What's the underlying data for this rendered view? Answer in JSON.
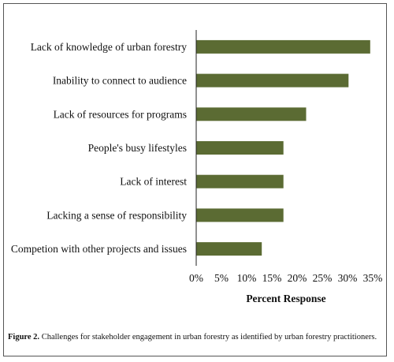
{
  "chart_data": {
    "type": "bar",
    "orientation": "horizontal",
    "categories": [
      "Lack of knowledge of urban forestry",
      "Inability to connect to audience",
      "Lack of resources for programs",
      "People's busy lifestyles",
      "Lack of interest",
      "Lacking a sense of responsibility",
      "Competion with other projects and issues"
    ],
    "values": [
      34.5,
      30.2,
      21.8,
      17.3,
      17.3,
      17.3,
      13.0
    ],
    "xlabel": "Percent Response",
    "xlim": [
      0,
      35
    ],
    "xticks": [
      "0%",
      "5%",
      "10%",
      "15%",
      "20%",
      "25%",
      "30%",
      "35%"
    ],
    "bar_color": "#5b6b33",
    "grid": false,
    "legend": "none"
  },
  "caption": {
    "label": "Figure 2.",
    "text": " Challenges for stakeholder engagement in urban forestry as identified by urban forestry practitioners."
  }
}
